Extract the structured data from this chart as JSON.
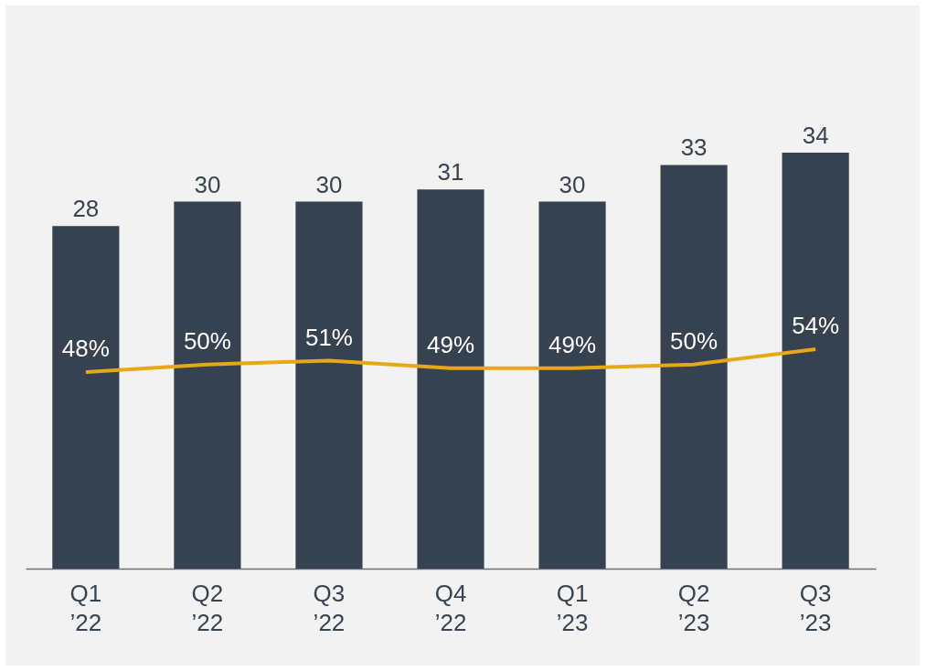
{
  "chart_data": {
    "type": "bar",
    "categories": [
      "Q1\n’22",
      "Q2\n’22",
      "Q3\n’22",
      "Q4\n’22",
      "Q1\n’23",
      "Q2\n’23",
      "Q3\n’23"
    ],
    "series": [
      {
        "color": "#36424f",
        "values": [
          28,
          30,
          30,
          31,
          30,
          33,
          34
        ]
      },
      {
        "type": "line",
        "axis": "y2",
        "color": "#e6a817",
        "values": [
          48,
          50,
          51,
          49,
          49,
          50,
          54
        ],
        "value_labels": [
          "48%",
          "50%",
          "51%",
          "49%",
          "49%",
          "50%",
          "54%"
        ]
      }
    ],
    "data_labels": true,
    "tick_labels": "x",
    "grid": false,
    "marker": "none",
    "line_style": "solid"
  }
}
